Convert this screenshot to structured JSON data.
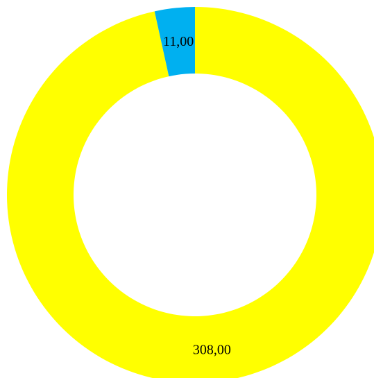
{
  "chart_data": {
    "type": "pie",
    "variant": "donut",
    "slices": [
      {
        "value": 308,
        "label": "308,00",
        "color": "#FFFF00"
      },
      {
        "value": 11,
        "label": "11,00",
        "color": "#00B0F0"
      }
    ],
    "title": "",
    "legend": "none"
  }
}
